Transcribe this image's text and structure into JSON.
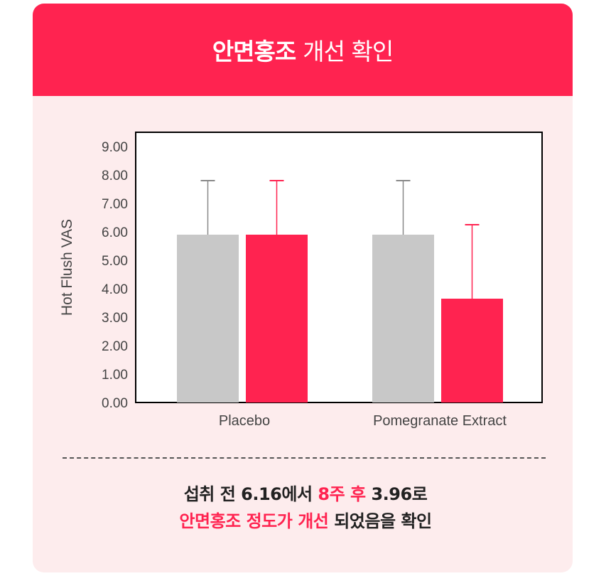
{
  "header": {
    "title_bold": "안면홍조",
    "title_rest": "개선 확인"
  },
  "chart_data": {
    "type": "bar",
    "ylabel": "Hot Flush VAS",
    "xlabel": "",
    "ylim": [
      0,
      9.5
    ],
    "yticks": [
      "0.00",
      "1.00",
      "2.00",
      "3.00",
      "4.00",
      "5.00",
      "6.00",
      "7.00",
      "8.00",
      "9.00"
    ],
    "categories": [
      "Placebo",
      "Pomegranate Extract"
    ],
    "series": [
      {
        "values": [
          5.9,
          5.9
        ],
        "error_upper": [
          7.8,
          7.8
        ],
        "color": "#c8c8c8",
        "cap_color": "#888888"
      },
      {
        "values": [
          5.9,
          3.65
        ],
        "error_upper": [
          7.8,
          6.25
        ],
        "color": "#ff2350",
        "cap_color": "#ff2350"
      }
    ],
    "grid": false,
    "legend": "none"
  },
  "summary": {
    "line1_a": "섭취 전 6.16에서 ",
    "line1_hl": "8주 후",
    "line1_b": " 3.96로",
    "line2_hl": "안면홍조 정도가 개선",
    "line2_b": " 되었음을 확인"
  },
  "colors": {
    "accent": "#ff2350",
    "card_bg": "#fdeced",
    "placebo_bar": "#c8c8c8"
  }
}
